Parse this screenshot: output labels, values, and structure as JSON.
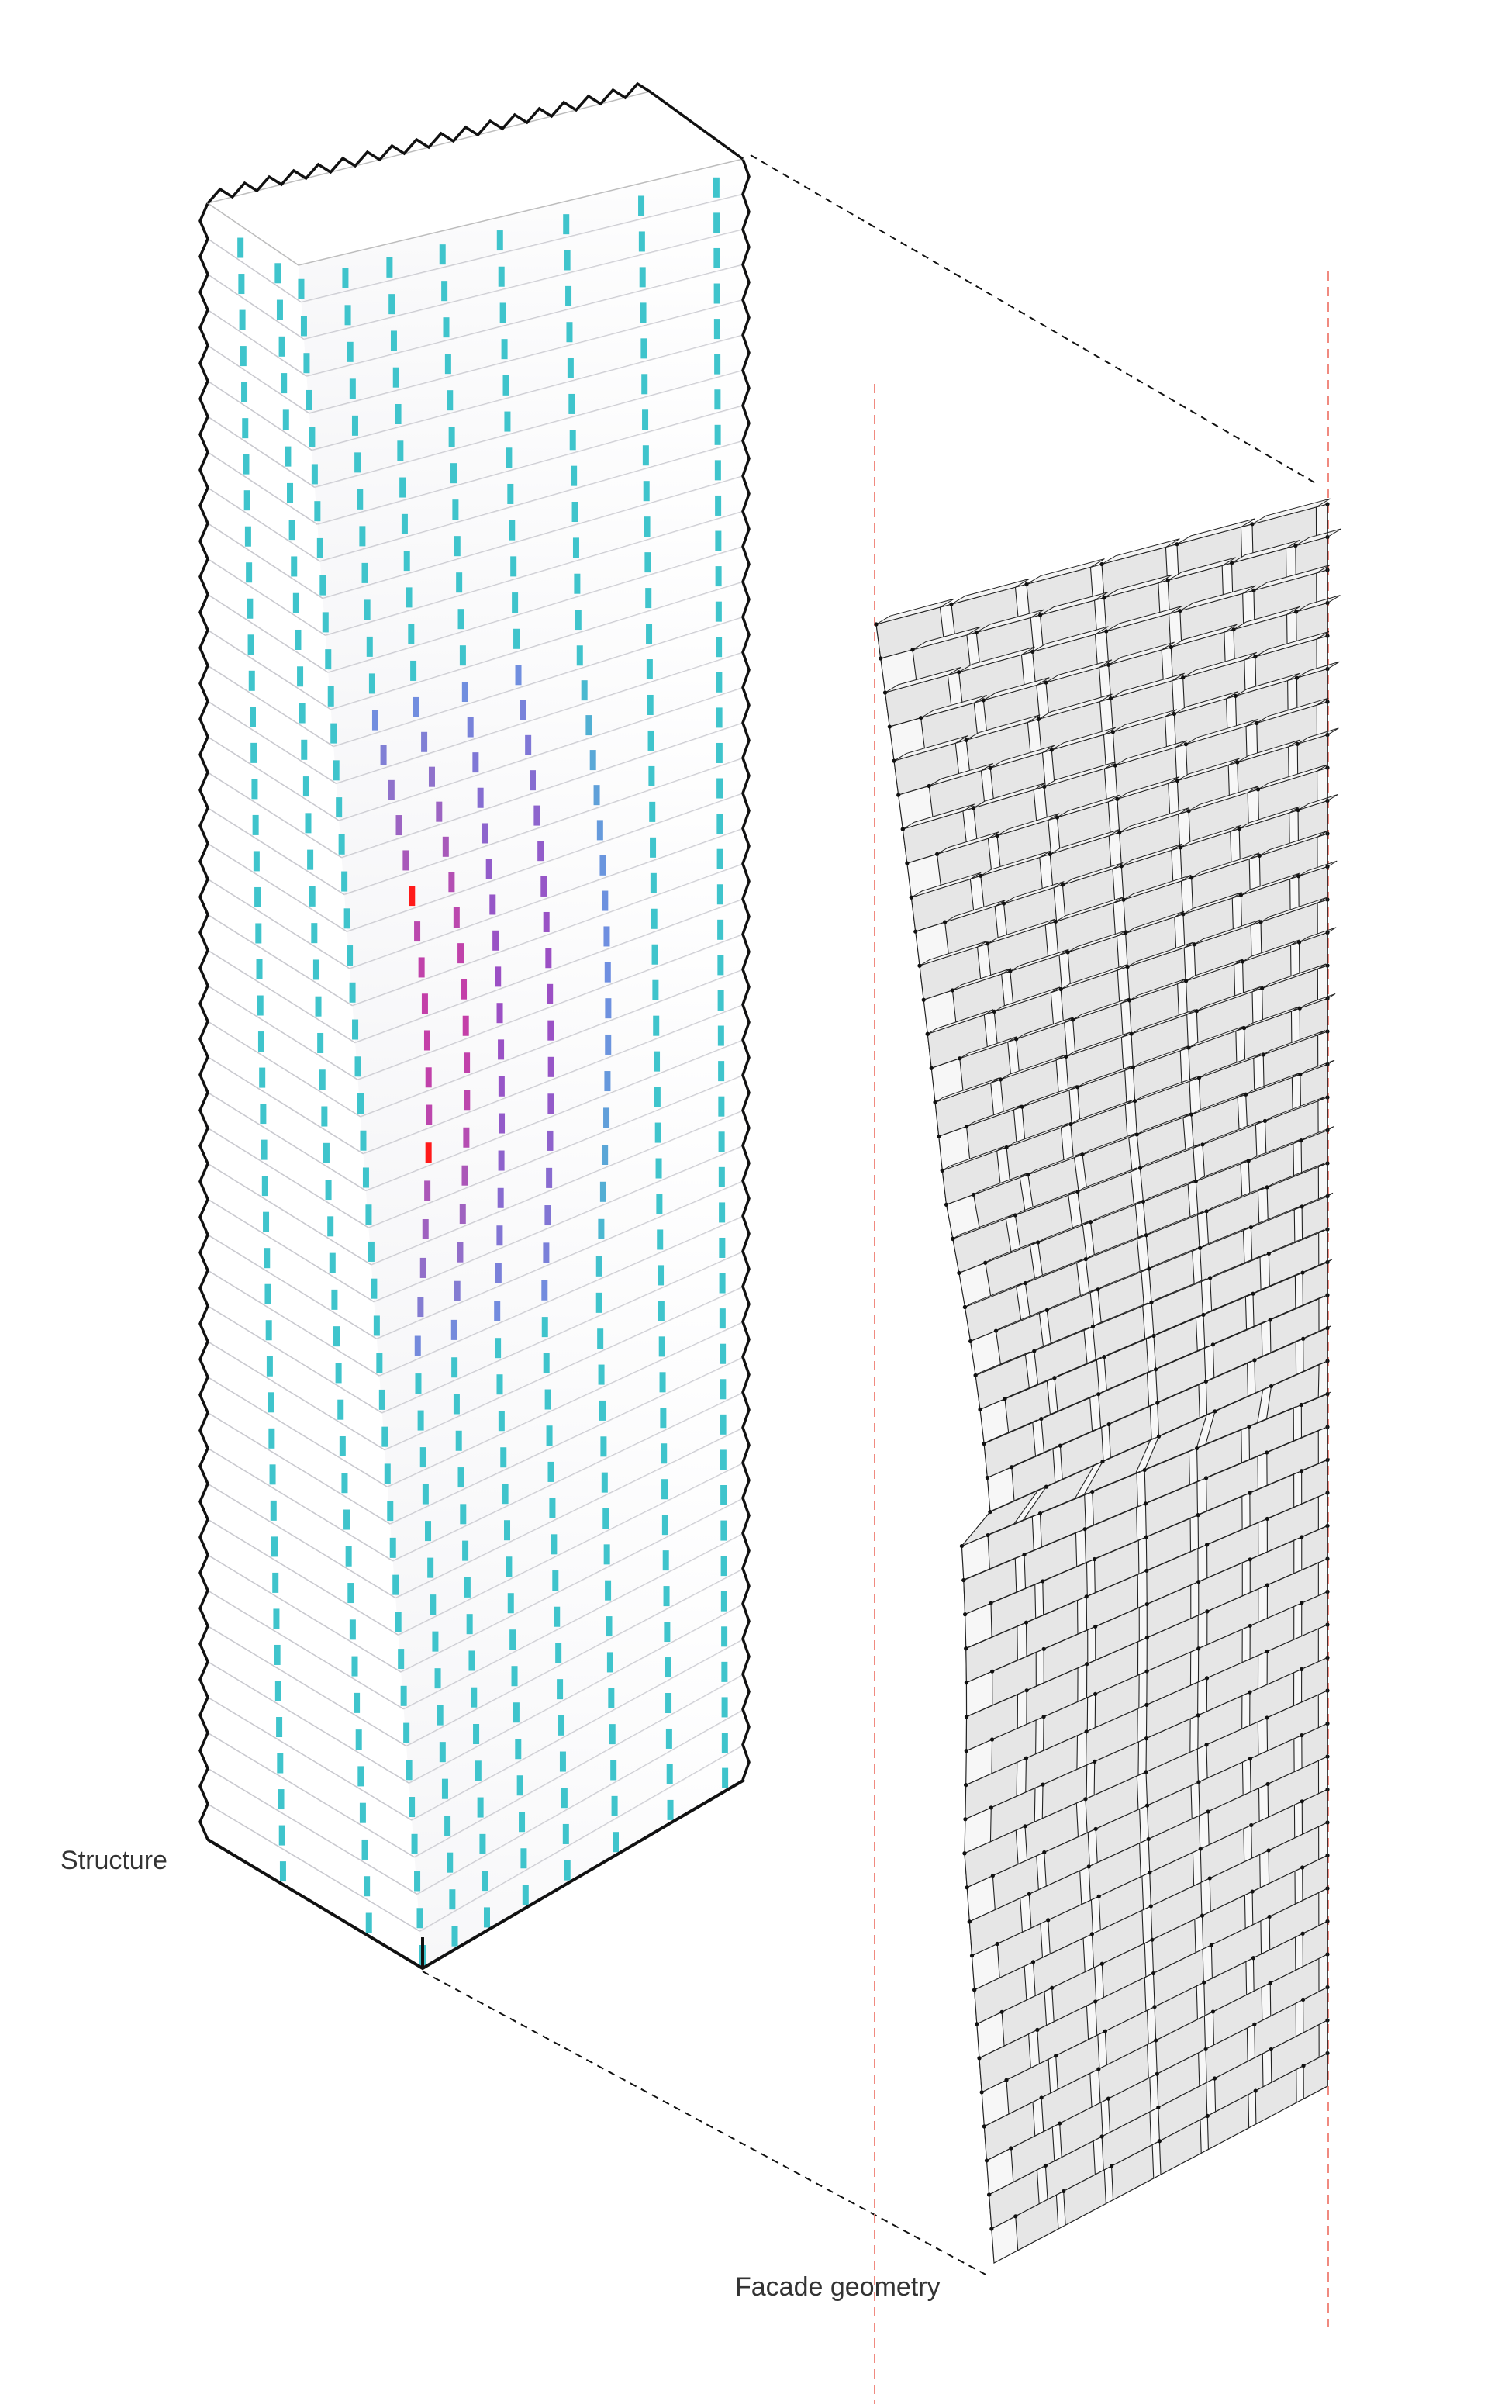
{
  "labels": {
    "structure": "Structure",
    "facade": "Facade geometry"
  },
  "colors": {
    "background": "#ffffff",
    "outline": "#111111",
    "column_standard": "#3fc4cc",
    "column_shifted_top": "#6f8fe0",
    "column_shifted_mid": "#9b4fc4",
    "column_shifted_peak": "#c43fa8",
    "column_transfer": "#ff1a1a",
    "slab": "#f4f4f6",
    "panel_face": "#e6e6e6",
    "panel_top": "#f3f3f3",
    "guide_line": "#f08a80",
    "leader_line": "#111111"
  },
  "icons": {
    "tower": "isometric-tower",
    "facade": "panelized-facade-strip"
  }
}
